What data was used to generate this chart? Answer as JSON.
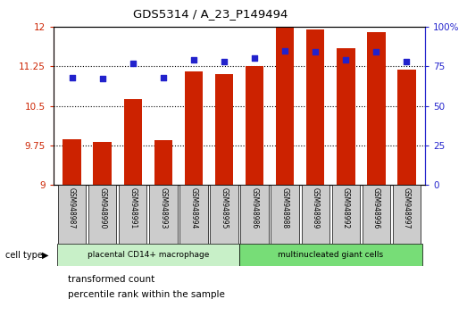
{
  "title": "GDS5314 / A_23_P149494",
  "samples": [
    "GSM948987",
    "GSM948990",
    "GSM948991",
    "GSM948993",
    "GSM948994",
    "GSM948995",
    "GSM948986",
    "GSM948988",
    "GSM948989",
    "GSM948992",
    "GSM948996",
    "GSM948997"
  ],
  "transformed_count": [
    9.87,
    9.82,
    10.63,
    9.85,
    11.15,
    11.1,
    11.25,
    11.98,
    11.95,
    11.6,
    11.9,
    11.18
  ],
  "percentile_rank": [
    68,
    67,
    77,
    68,
    79,
    78,
    80,
    85,
    84,
    79,
    84,
    78
  ],
  "group1_count": 6,
  "group2_count": 6,
  "group1_label": "placental CD14+ macrophage",
  "group2_label": "multinucleated giant cells",
  "cell_type_label": "cell type",
  "ymin": 9.0,
  "ymax": 12.0,
  "yticks": [
    9.0,
    9.75,
    10.5,
    11.25,
    12.0
  ],
  "ytick_labels": [
    "9",
    "9.75",
    "10.5",
    "11.25",
    "12"
  ],
  "y2min": 0,
  "y2max": 100,
  "y2ticks": [
    0,
    25,
    50,
    75,
    100
  ],
  "y2tick_labels": [
    "0",
    "25",
    "50",
    "75",
    "100%"
  ],
  "bar_color": "#cc2200",
  "dot_color": "#2222cc",
  "group1_bg": "#c8f0c8",
  "group2_bg": "#77dd77",
  "tick_label_bg": "#cccccc",
  "legend_square_red": "#cc2200",
  "legend_square_blue": "#2222cc",
  "legend1": "transformed count",
  "legend2": "percentile rank within the sample",
  "left_tick_color": "#cc2200",
  "right_tick_color": "#2222cc",
  "dotted_line_color": "#000000"
}
